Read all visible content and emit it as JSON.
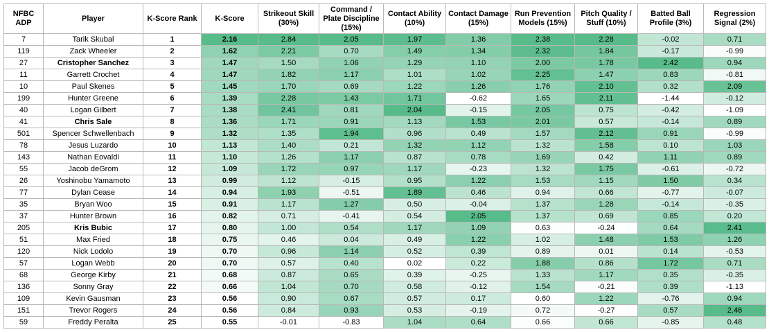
{
  "table": {
    "header": [
      "NFBC ADP",
      "Player",
      "K-Score Rank",
      "K-Score",
      "Strikeout Skill (30%)",
      "Command / Plate Discipline (15%)",
      "Contact Ability (10%)",
      "Contact Damage (15%)",
      "Run Prevention Models (15%)",
      "Pitch Quality / Stuff (10%)",
      "Batted Ball Profile (3%)",
      "Regression Signal (2%)"
    ],
    "rows": [
      {
        "cells": [
          "7",
          "Tarik Skubal",
          "1",
          "2.16",
          "2.84",
          "2.05",
          "1.97",
          "1.36",
          "2.38",
          "2.28",
          "-0.02",
          "0.71"
        ]
      },
      {
        "cells": [
          "119",
          "Zack Wheeler",
          "2",
          "1.62",
          "2.21",
          "0.70",
          "1.49",
          "1.34",
          "2.32",
          "1.84",
          "-0.17",
          "-0.99"
        ]
      },
      {
        "cells": [
          "27",
          "Cristopher Sanchez",
          "3",
          "1.47",
          "1.50",
          "1.06",
          "1.29",
          "1.10",
          "2.00",
          "1.78",
          "2.42",
          "0.94"
        ],
        "bold": true
      },
      {
        "cells": [
          "11",
          "Garrett Crochet",
          "4",
          "1.47",
          "1.82",
          "1.17",
          "1.01",
          "1.02",
          "2.25",
          "1.47",
          "0.83",
          "-0.81"
        ]
      },
      {
        "cells": [
          "10",
          "Paul Skenes",
          "5",
          "1.45",
          "1.70",
          "0.69",
          "1.22",
          "1.26",
          "1.76",
          "2.10",
          "0.32",
          "2.09"
        ]
      },
      {
        "cells": [
          "199",
          "Hunter Greene",
          "6",
          "1.39",
          "2.28",
          "1.43",
          "1.71",
          "-0.62",
          "1.65",
          "2.11",
          "-1.44",
          "-0.12"
        ]
      },
      {
        "cells": [
          "40",
          "Logan Gilbert",
          "7",
          "1.38",
          "2.41",
          "0.81",
          "2.04",
          "-0.15",
          "2.05",
          "0.75",
          "-0.42",
          "-1.09"
        ]
      },
      {
        "cells": [
          "41",
          "Chris Sale",
          "8",
          "1.36",
          "1.71",
          "0.91",
          "1.13",
          "1.53",
          "2.01",
          "0.57",
          "-0.14",
          "0.89"
        ],
        "bold": true
      },
      {
        "cells": [
          "501",
          "Spencer Schwellenbach",
          "9",
          "1.32",
          "1.35",
          "1.94",
          "0.96",
          "0.49",
          "1.57",
          "2.12",
          "0.91",
          "-0.99"
        ]
      },
      {
        "cells": [
          "78",
          "Jesus Luzardo",
          "10",
          "1.13",
          "1.40",
          "0.21",
          "1.32",
          "1.12",
          "1.32",
          "1.58",
          "0.10",
          "1.03"
        ]
      },
      {
        "cells": [
          "143",
          "Nathan Eovaldi",
          "11",
          "1.10",
          "1.26",
          "1.17",
          "0.87",
          "0.78",
          "1.69",
          "0.42",
          "1.11",
          "0.89"
        ]
      },
      {
        "cells": [
          "55",
          "Jacob deGrom",
          "12",
          "1.09",
          "1.72",
          "0.97",
          "1.17",
          "-0.23",
          "1.32",
          "1.75",
          "-0.61",
          "-0.72"
        ]
      },
      {
        "cells": [
          "26",
          "Yoshinobu Yamamoto",
          "13",
          "0.99",
          "1.12",
          "-0.15",
          "0.95",
          "1.22",
          "1.53",
          "1.15",
          "1.50",
          "0.34"
        ]
      },
      {
        "cells": [
          "77",
          "Dylan Cease",
          "14",
          "0.94",
          "1.93",
          "-0.51",
          "1.89",
          "0.46",
          "0.94",
          "0.66",
          "-0.77",
          "-0.07"
        ]
      },
      {
        "cells": [
          "35",
          "Bryan Woo",
          "15",
          "0.91",
          "1.17",
          "1.27",
          "0.50",
          "-0.04",
          "1.37",
          "1.28",
          "-0.14",
          "-0.35"
        ]
      },
      {
        "cells": [
          "37",
          "Hunter Brown",
          "16",
          "0.82",
          "0.71",
          "-0.41",
          "0.54",
          "2.05",
          "1.37",
          "0.69",
          "0.85",
          "0.20"
        ]
      },
      {
        "cells": [
          "205",
          "Kris Bubic",
          "17",
          "0.80",
          "1.00",
          "0.54",
          "1.17",
          "1.09",
          "0.63",
          "-0.24",
          "0.64",
          "2.41"
        ],
        "bold": true
      },
      {
        "cells": [
          "51",
          "Max Fried",
          "18",
          "0.75",
          "0.46",
          "0.04",
          "0.49",
          "1.22",
          "1.02",
          "1.48",
          "1.53",
          "1.26"
        ]
      },
      {
        "cells": [
          "120",
          "Nick Lodolo",
          "19",
          "0.70",
          "0.96",
          "1.14",
          "0.52",
          "0.39",
          "0.89",
          "0.01",
          "0.14",
          "-0.53"
        ]
      },
      {
        "cells": [
          "57",
          "Logan Webb",
          "20",
          "0.70",
          "0.57",
          "0.40",
          "0.02",
          "0.22",
          "1.88",
          "0.86",
          "1.72",
          "0.71"
        ]
      },
      {
        "cells": [
          "68",
          "George Kirby",
          "21",
          "0.68",
          "0.87",
          "0.65",
          "0.39",
          "-0.25",
          "1.33",
          "1.17",
          "0.35",
          "-0.35"
        ]
      },
      {
        "cells": [
          "136",
          "Sonny Gray",
          "22",
          "0.66",
          "1.04",
          "0.70",
          "0.58",
          "-0.12",
          "1.54",
          "-0.21",
          "0.39",
          "-1.13"
        ]
      },
      {
        "cells": [
          "109",
          "Kevin Gausman",
          "23",
          "0.56",
          "0.90",
          "0.67",
          "0.57",
          "0.17",
          "0.60",
          "1.22",
          "-0.76",
          "0.94"
        ]
      },
      {
        "cells": [
          "151",
          "Trevor Rogers",
          "24",
          "0.56",
          "0.84",
          "0.93",
          "0.53",
          "-0.19",
          "0.72",
          "-0.27",
          "0.57",
          "2.46"
        ]
      },
      {
        "cells": [
          "59",
          "Freddy Peralta",
          "25",
          "0.55",
          "-0.01",
          "-0.83",
          "1.04",
          "0.64",
          "0.66",
          "0.66",
          "-0.85",
          "0.48"
        ]
      }
    ]
  }
}
